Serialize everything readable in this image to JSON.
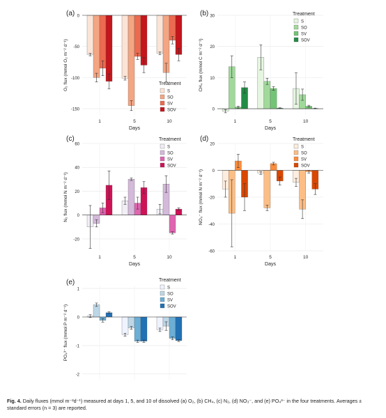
{
  "caption": {
    "label": "Fig. 4.",
    "text": "Daily fluxes (mmol m⁻²d⁻¹) measured at days 1, 5, and 10 of dissolved (a) O₂, (b) CH₄, (c) N₂, (d) NO₃⁻, and (e) PO₄³⁻ in the four treatments. Averages ± standard errors (n = 3) are reported."
  },
  "chart_data": [
    {
      "panel": "(a)",
      "type": "bar",
      "xlabel": "Days",
      "ylabel": "O₂ flux (mmol O₂ m⁻² d⁻¹)",
      "ylim": [
        -160,
        0
      ],
      "yticks": [
        0,
        -50,
        -100,
        -150
      ],
      "categories": [
        "1",
        "5",
        "10"
      ],
      "legend_title": "Treatment",
      "legend_position": "right",
      "series": [
        {
          "name": "S",
          "color": "#fbe4d6",
          "values": [
            -63,
            -101,
            -61
          ],
          "errors": [
            2,
            3,
            2
          ]
        },
        {
          "name": "SO",
          "color": "#f4a582",
          "values": [
            -100,
            -145,
            -92
          ],
          "errors": [
            7,
            8,
            15
          ]
        },
        {
          "name": "SV",
          "color": "#ec6a4f",
          "values": [
            -85,
            -66,
            -40
          ],
          "errors": [
            12,
            5,
            6
          ]
        },
        {
          "name": "SOV",
          "color": "#c4161c",
          "values": [
            -106,
            -80,
            -63
          ],
          "errors": [
            12,
            12,
            10
          ]
        }
      ]
    },
    {
      "panel": "(b)",
      "type": "bar",
      "xlabel": "Days",
      "ylabel": "CH₄ flux (mmol C m⁻² d⁻¹)",
      "ylim": [
        -2,
        30
      ],
      "yticks": [
        0,
        10,
        20,
        30
      ],
      "categories": [
        "1",
        "5",
        "10"
      ],
      "legend_title": "Treatment",
      "legend_position": "right",
      "series": [
        {
          "name": "S",
          "color": "#e5f5e0",
          "values": [
            -0.8,
            16.5,
            6.5
          ],
          "errors": [
            0.5,
            4,
            5
          ]
        },
        {
          "name": "SO",
          "color": "#a1d99b",
          "values": [
            13.5,
            8.8,
            4.5
          ],
          "errors": [
            3.5,
            1,
            1.8
          ]
        },
        {
          "name": "SV",
          "color": "#74c476",
          "values": [
            0.5,
            6.5,
            0.8
          ],
          "errors": [
            0.3,
            0.6,
            0.3
          ]
        },
        {
          "name": "SOV",
          "color": "#238b45",
          "values": [
            6.8,
            0.2,
            0.1
          ],
          "errors": [
            1.8,
            0.1,
            0.1
          ]
        }
      ]
    },
    {
      "panel": "(c)",
      "type": "bar",
      "xlabel": "Days",
      "ylabel": "N₂ flux (mmol N m⁻² d⁻¹)",
      "ylim": [
        -30,
        60
      ],
      "yticks": [
        -20,
        0,
        20,
        40,
        60
      ],
      "categories": [
        "1",
        "5",
        "10"
      ],
      "legend_title": "Treatment",
      "legend_position": "right",
      "series": [
        {
          "name": "S",
          "color": "#f1eef6",
          "values": [
            -10,
            12,
            5
          ],
          "errors": [
            18,
            3,
            4
          ]
        },
        {
          "name": "SO",
          "color": "#d4b9da",
          "values": [
            -7,
            30,
            26
          ],
          "errors": [
            3,
            1,
            7
          ]
        },
        {
          "name": "SV",
          "color": "#df65b0",
          "values": [
            6,
            10,
            -15
          ],
          "errors": [
            4,
            5,
            1
          ]
        },
        {
          "name": "SOV",
          "color": "#ce1256",
          "values": [
            25,
            23,
            5
          ],
          "errors": [
            12,
            5,
            1
          ]
        }
      ]
    },
    {
      "panel": "(d)",
      "type": "bar",
      "xlabel": "Days",
      "ylabel": "NO₃⁻ flux (mmol N m⁻² d⁻¹)",
      "ylim": [
        -60,
        20
      ],
      "yticks": [
        -60,
        -40,
        -20,
        0,
        20
      ],
      "categories": [
        "1",
        "5",
        "10"
      ],
      "legend_title": "Treatment",
      "legend_position": "right",
      "series": [
        {
          "name": "S",
          "color": "#feedde",
          "values": [
            -14,
            -2,
            -9
          ],
          "errors": [
            6,
            1,
            3
          ]
        },
        {
          "name": "SO",
          "color": "#fdbe85",
          "values": [
            -32,
            -28,
            -29
          ],
          "errors": [
            25,
            2,
            7
          ]
        },
        {
          "name": "SV",
          "color": "#fd8d3c",
          "values": [
            7,
            5,
            -1
          ],
          "errors": [
            5,
            1,
            1
          ]
        },
        {
          "name": "SOV",
          "color": "#d94701",
          "values": [
            -20,
            -8,
            -14
          ],
          "errors": [
            10,
            3,
            4
          ]
        }
      ]
    },
    {
      "panel": "(e)",
      "type": "bar",
      "xlabel": "Days",
      "ylabel": "PO₄³⁻ flux (mmol P m⁻² d⁻¹)",
      "ylim": [
        -2.2,
        1.1
      ],
      "yticks": [
        -2,
        -1,
        0,
        1
      ],
      "categories": [
        "1",
        "5",
        "10"
      ],
      "legend_title": "Treatment",
      "legend_position": "right",
      "series": [
        {
          "name": "S",
          "color": "#eff3ff",
          "values": [
            0.03,
            -0.62,
            -0.45
          ],
          "errors": [
            0.05,
            0.05,
            0.06
          ]
        },
        {
          "name": "SO",
          "color": "#bdd7e7",
          "values": [
            0.43,
            -0.38,
            -0.32
          ],
          "errors": [
            0.06,
            0.05,
            0.15
          ]
        },
        {
          "name": "SV",
          "color": "#6baed6",
          "values": [
            -0.12,
            -0.85,
            -0.75
          ],
          "errors": [
            0.06,
            0.04,
            0.05
          ]
        },
        {
          "name": "SOV",
          "color": "#2171b5",
          "values": [
            0.15,
            -0.85,
            -0.83
          ],
          "errors": [
            0.03,
            0.04,
            0.03
          ]
        }
      ]
    }
  ]
}
